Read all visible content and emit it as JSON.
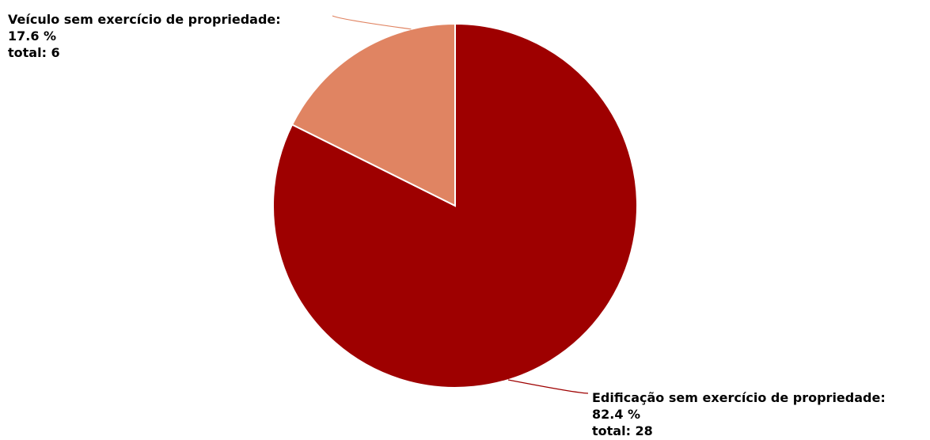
{
  "chart_data": {
    "type": "pie",
    "title": "",
    "start_angle_deg": 0,
    "direction": "clockwise",
    "slices": [
      {
        "name": "Edificação sem exercício de propriedade:",
        "percent_label": "82.4 %",
        "total_label": "total: 28",
        "value": 28,
        "percent": 82.4,
        "color": "#9e0000"
      },
      {
        "name": "Veículo sem exercício de propriedade:",
        "percent_label": "17.6 %",
        "total_label": "total: 6",
        "value": 6,
        "percent": 17.6,
        "color": "#e08462"
      }
    ]
  }
}
